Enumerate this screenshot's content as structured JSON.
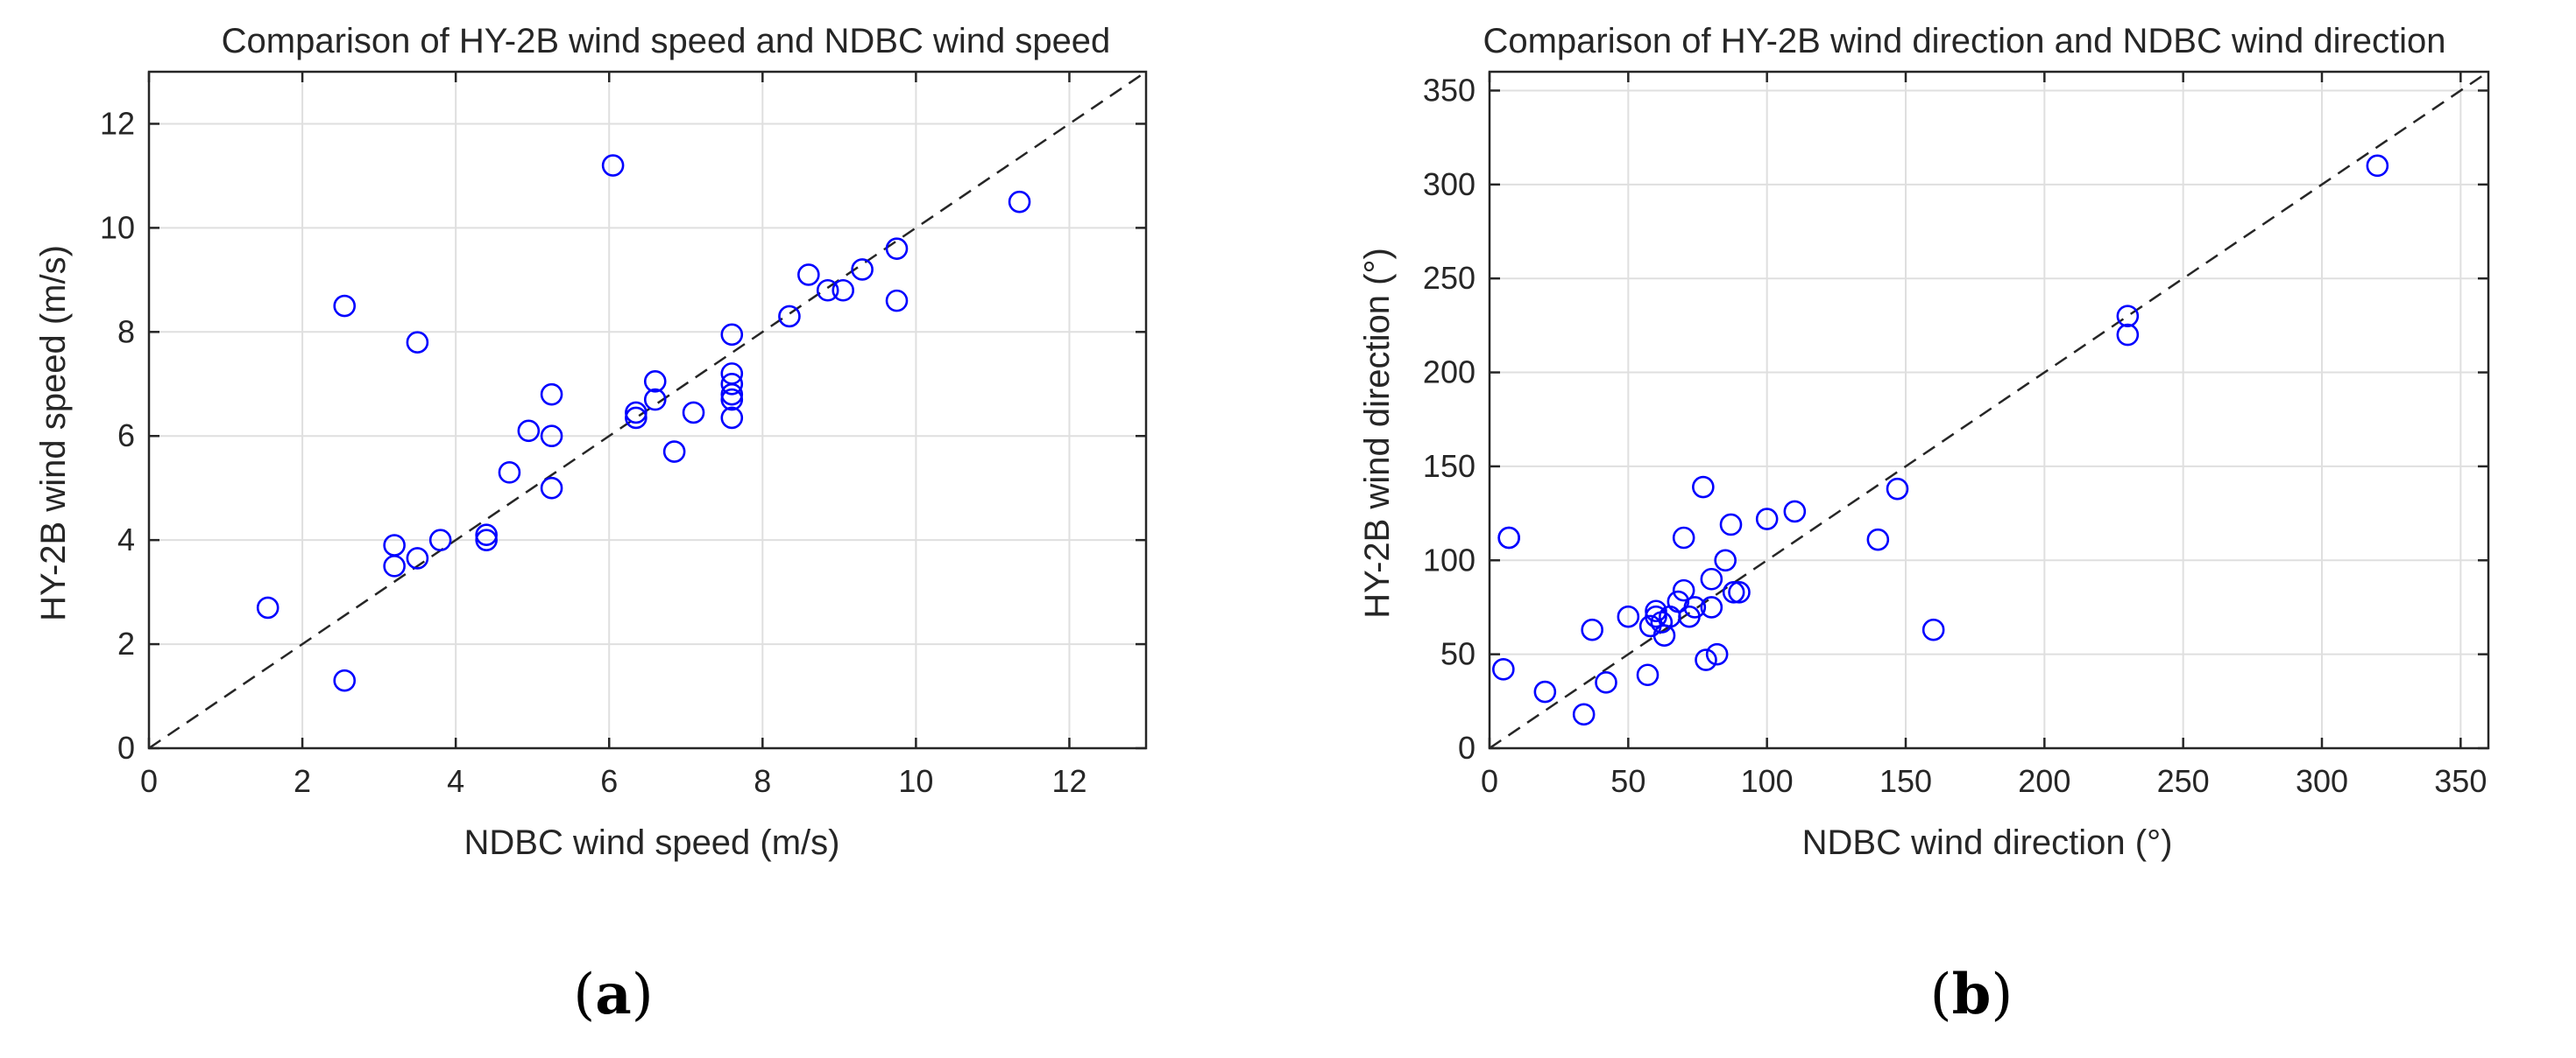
{
  "colors": {
    "marker": "#0000ff",
    "grid": "#dfdfdf",
    "axis": "#262626",
    "reference": "#262626"
  },
  "chart_data": [
    {
      "type": "scatter",
      "title": "Comparison of HY-2B wind speed and NDBC wind speed",
      "xlabel": "NDBC wind speed (m/s)",
      "ylabel": "HY-2B wind speed (m/s)",
      "xlim": [
        0,
        13
      ],
      "ylim": [
        0,
        13
      ],
      "xticks": [
        0,
        2,
        4,
        6,
        8,
        10,
        12
      ],
      "yticks": [
        0,
        2,
        4,
        6,
        8,
        10,
        12
      ],
      "grid": true,
      "reference_line": "y = x (dashed)",
      "panel_label": "(a)",
      "series": [
        {
          "name": "wind speed",
          "x": [
            1.55,
            2.55,
            2.55,
            3.2,
            3.2,
            3.5,
            3.5,
            3.8,
            4.4,
            4.4,
            4.7,
            4.95,
            5.25,
            5.25,
            5.25,
            6.05,
            6.35,
            6.35,
            6.6,
            6.6,
            6.85,
            7.1,
            7.6,
            7.6,
            7.6,
            7.6,
            7.6,
            7.6,
            8.35,
            8.6,
            8.85,
            9.05,
            9.3,
            9.75,
            9.75,
            11.35
          ],
          "y": [
            2.7,
            8.5,
            1.3,
            3.9,
            3.5,
            3.65,
            7.8,
            4.0,
            4.1,
            4.0,
            5.3,
            6.1,
            6.8,
            6.0,
            5.0,
            11.2,
            6.45,
            6.35,
            7.05,
            6.7,
            5.7,
            6.45,
            7.95,
            7.2,
            7.0,
            6.7,
            6.8,
            6.35,
            8.3,
            9.1,
            8.8,
            8.8,
            9.2,
            9.6,
            8.6,
            10.5
          ]
        }
      ]
    },
    {
      "type": "scatter",
      "title": "Comparison of HY-2B wind direction and NDBC wind direction",
      "xlabel": "NDBC wind direction (°)",
      "ylabel": "HY-2B wind direction (°)",
      "xlim": [
        0,
        360
      ],
      "ylim": [
        0,
        360
      ],
      "xticks": [
        0,
        50,
        100,
        150,
        200,
        250,
        300,
        350
      ],
      "yticks": [
        0,
        50,
        100,
        150,
        200,
        250,
        300,
        350
      ],
      "grid": true,
      "reference_line": "y = x (dashed)",
      "panel_label": "(b)",
      "series": [
        {
          "name": "wind direction",
          "x": [
            5,
            7,
            7,
            20,
            34,
            37,
            42,
            50,
            57,
            58,
            60,
            60,
            62,
            63,
            65,
            68,
            70,
            70,
            72,
            74,
            77,
            78,
            80,
            80,
            82,
            85,
            87,
            88,
            90,
            100,
            110,
            140,
            147,
            160,
            230,
            230,
            320
          ],
          "y": [
            42,
            112,
            112,
            30,
            18,
            63,
            35,
            70,
            39,
            65,
            73,
            70,
            67,
            60,
            70,
            78,
            112,
            84,
            70,
            75,
            139,
            47,
            90,
            75,
            50,
            100,
            119,
            83,
            83,
            122,
            126,
            111,
            138,
            63,
            230,
            220,
            310
          ]
        }
      ]
    }
  ]
}
